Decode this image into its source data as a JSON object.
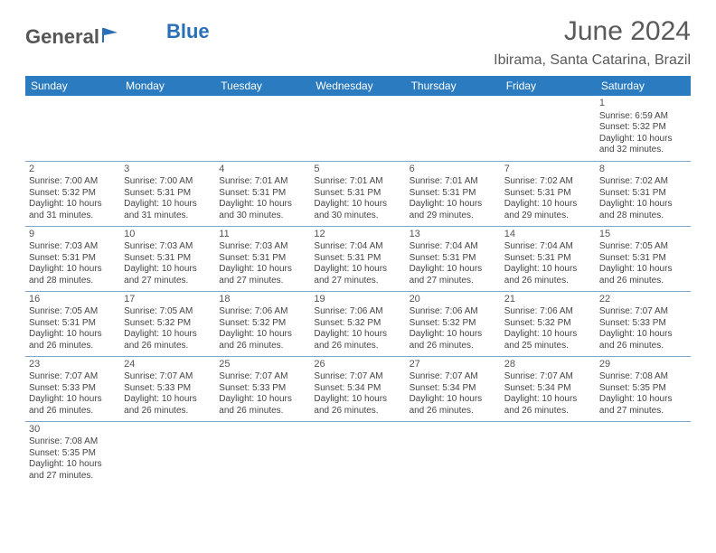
{
  "logo": {
    "text1": "General",
    "text2": "Blue"
  },
  "title": "June 2024",
  "location": "Ibirama, Santa Catarina, Brazil",
  "colors": {
    "header_bg": "#2a7bbf",
    "header_text": "#ffffff",
    "border": "#7ca8cc",
    "text": "#444444"
  },
  "weekdays": [
    "Sunday",
    "Monday",
    "Tuesday",
    "Wednesday",
    "Thursday",
    "Friday",
    "Saturday"
  ],
  "weeks": [
    [
      null,
      null,
      null,
      null,
      null,
      null,
      {
        "d": "1",
        "sr": "6:59 AM",
        "ss": "5:32 PM",
        "dl": "10 hours and 32 minutes."
      }
    ],
    [
      {
        "d": "2",
        "sr": "7:00 AM",
        "ss": "5:32 PM",
        "dl": "10 hours and 31 minutes."
      },
      {
        "d": "3",
        "sr": "7:00 AM",
        "ss": "5:31 PM",
        "dl": "10 hours and 31 minutes."
      },
      {
        "d": "4",
        "sr": "7:01 AM",
        "ss": "5:31 PM",
        "dl": "10 hours and 30 minutes."
      },
      {
        "d": "5",
        "sr": "7:01 AM",
        "ss": "5:31 PM",
        "dl": "10 hours and 30 minutes."
      },
      {
        "d": "6",
        "sr": "7:01 AM",
        "ss": "5:31 PM",
        "dl": "10 hours and 29 minutes."
      },
      {
        "d": "7",
        "sr": "7:02 AM",
        "ss": "5:31 PM",
        "dl": "10 hours and 29 minutes."
      },
      {
        "d": "8",
        "sr": "7:02 AM",
        "ss": "5:31 PM",
        "dl": "10 hours and 28 minutes."
      }
    ],
    [
      {
        "d": "9",
        "sr": "7:03 AM",
        "ss": "5:31 PM",
        "dl": "10 hours and 28 minutes."
      },
      {
        "d": "10",
        "sr": "7:03 AM",
        "ss": "5:31 PM",
        "dl": "10 hours and 27 minutes."
      },
      {
        "d": "11",
        "sr": "7:03 AM",
        "ss": "5:31 PM",
        "dl": "10 hours and 27 minutes."
      },
      {
        "d": "12",
        "sr": "7:04 AM",
        "ss": "5:31 PM",
        "dl": "10 hours and 27 minutes."
      },
      {
        "d": "13",
        "sr": "7:04 AM",
        "ss": "5:31 PM",
        "dl": "10 hours and 27 minutes."
      },
      {
        "d": "14",
        "sr": "7:04 AM",
        "ss": "5:31 PM",
        "dl": "10 hours and 26 minutes."
      },
      {
        "d": "15",
        "sr": "7:05 AM",
        "ss": "5:31 PM",
        "dl": "10 hours and 26 minutes."
      }
    ],
    [
      {
        "d": "16",
        "sr": "7:05 AM",
        "ss": "5:31 PM",
        "dl": "10 hours and 26 minutes."
      },
      {
        "d": "17",
        "sr": "7:05 AM",
        "ss": "5:32 PM",
        "dl": "10 hours and 26 minutes."
      },
      {
        "d": "18",
        "sr": "7:06 AM",
        "ss": "5:32 PM",
        "dl": "10 hours and 26 minutes."
      },
      {
        "d": "19",
        "sr": "7:06 AM",
        "ss": "5:32 PM",
        "dl": "10 hours and 26 minutes."
      },
      {
        "d": "20",
        "sr": "7:06 AM",
        "ss": "5:32 PM",
        "dl": "10 hours and 26 minutes."
      },
      {
        "d": "21",
        "sr": "7:06 AM",
        "ss": "5:32 PM",
        "dl": "10 hours and 25 minutes."
      },
      {
        "d": "22",
        "sr": "7:07 AM",
        "ss": "5:33 PM",
        "dl": "10 hours and 26 minutes."
      }
    ],
    [
      {
        "d": "23",
        "sr": "7:07 AM",
        "ss": "5:33 PM",
        "dl": "10 hours and 26 minutes."
      },
      {
        "d": "24",
        "sr": "7:07 AM",
        "ss": "5:33 PM",
        "dl": "10 hours and 26 minutes."
      },
      {
        "d": "25",
        "sr": "7:07 AM",
        "ss": "5:33 PM",
        "dl": "10 hours and 26 minutes."
      },
      {
        "d": "26",
        "sr": "7:07 AM",
        "ss": "5:34 PM",
        "dl": "10 hours and 26 minutes."
      },
      {
        "d": "27",
        "sr": "7:07 AM",
        "ss": "5:34 PM",
        "dl": "10 hours and 26 minutes."
      },
      {
        "d": "28",
        "sr": "7:07 AM",
        "ss": "5:34 PM",
        "dl": "10 hours and 26 minutes."
      },
      {
        "d": "29",
        "sr": "7:08 AM",
        "ss": "5:35 PM",
        "dl": "10 hours and 27 minutes."
      }
    ],
    [
      {
        "d": "30",
        "sr": "7:08 AM",
        "ss": "5:35 PM",
        "dl": "10 hours and 27 minutes."
      },
      null,
      null,
      null,
      null,
      null,
      null
    ]
  ],
  "labels": {
    "sunrise": "Sunrise: ",
    "sunset": "Sunset: ",
    "daylight": "Daylight: "
  }
}
